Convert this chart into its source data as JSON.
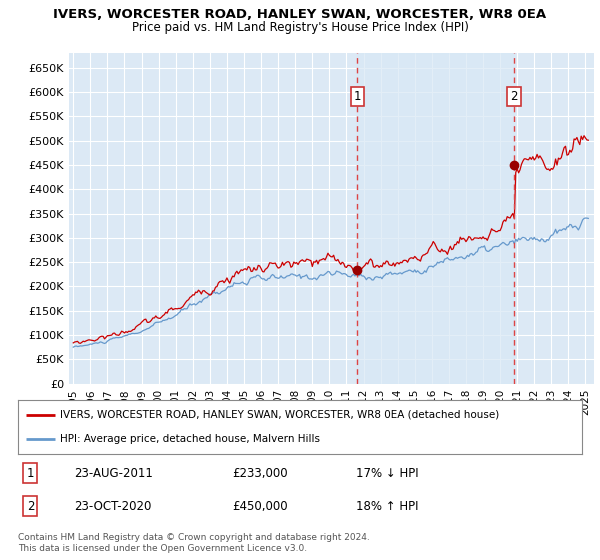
{
  "title": "IVERS, WORCESTER ROAD, HANLEY SWAN, WORCESTER, WR8 0EA",
  "subtitle": "Price paid vs. HM Land Registry's House Price Index (HPI)",
  "ylabel_ticks": [
    "£0",
    "£50K",
    "£100K",
    "£150K",
    "£200K",
    "£250K",
    "£300K",
    "£350K",
    "£400K",
    "£450K",
    "£500K",
    "£550K",
    "£600K",
    "£650K"
  ],
  "ylim": [
    0,
    680000
  ],
  "yticks": [
    0,
    50000,
    100000,
    150000,
    200000,
    250000,
    300000,
    350000,
    400000,
    450000,
    500000,
    550000,
    600000,
    650000
  ],
  "bg_color": "#dce9f5",
  "grid_color": "#ffffff",
  "legend_entry1": "IVERS, WORCESTER ROAD, HANLEY SWAN, WORCESTER, WR8 0EA (detached house)",
  "legend_entry2": "HPI: Average price, detached house, Malvern Hills",
  "annotation1_label": "1",
  "annotation1_date": "23-AUG-2011",
  "annotation1_price": "£233,000",
  "annotation1_hpi": "17% ↓ HPI",
  "annotation2_label": "2",
  "annotation2_date": "23-OCT-2020",
  "annotation2_price": "£450,000",
  "annotation2_hpi": "18% ↑ HPI",
  "footer": "Contains HM Land Registry data © Crown copyright and database right 2024.\nThis data is licensed under the Open Government Licence v3.0.",
  "sale1_x": 2011.646,
  "sale1_y": 233000,
  "sale2_x": 2020.815,
  "sale2_y": 450000,
  "vline1_x": 2011.646,
  "vline2_x": 2020.815,
  "red_line_color": "#cc0000",
  "blue_line_color": "#6699cc",
  "blue_fill_color": "#d8e8f5",
  "vline_color": "#dd4444",
  "marker_color": "#990000",
  "xlim_left": 1994.75,
  "xlim_right": 2025.5
}
